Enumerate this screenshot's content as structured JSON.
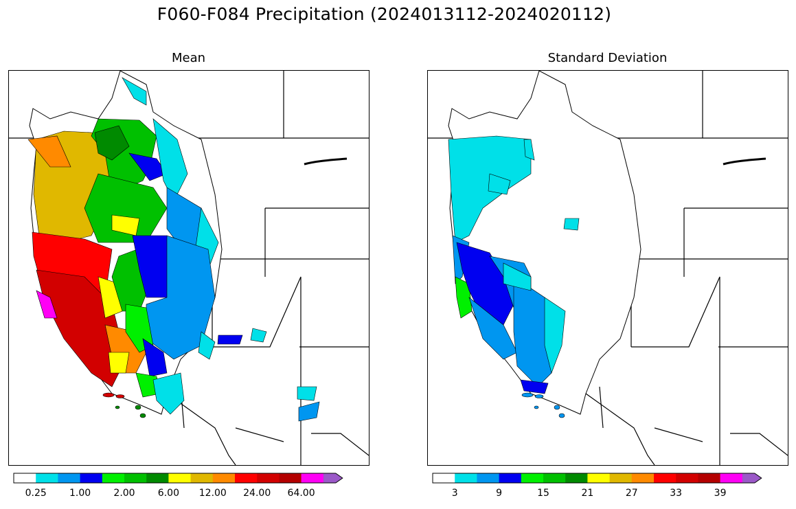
{
  "title": "F060-F084 Precipitation (2024013112-2024020112)",
  "panels": [
    {
      "title": "Mean",
      "colors": [
        "#ffffff",
        "#00e0e8",
        "#0096f0",
        "#0000f0",
        "#00f000",
        "#00c000",
        "#008a00",
        "#ffff00",
        "#e0b800",
        "#ff8a00",
        "#ff0000",
        "#d20000",
        "#b40000",
        "#ff00f5",
        "#9b59c8"
      ],
      "tick_labels": [
        "0.25",
        "1.00",
        "2.00",
        "6.00",
        "12.00",
        "24.00",
        "64.00"
      ]
    },
    {
      "title": "Standard Deviation",
      "colors": [
        "#ffffff",
        "#00e0e8",
        "#0096f0",
        "#0000f0",
        "#00f000",
        "#00c000",
        "#008a00",
        "#ffff00",
        "#e0b800",
        "#ff8a00",
        "#ff0000",
        "#d20000",
        "#b40000",
        "#ff00f5",
        "#9b59c8"
      ],
      "tick_labels": [
        "3",
        "9",
        "15",
        "21",
        "27",
        "33",
        "39"
      ]
    }
  ]
}
